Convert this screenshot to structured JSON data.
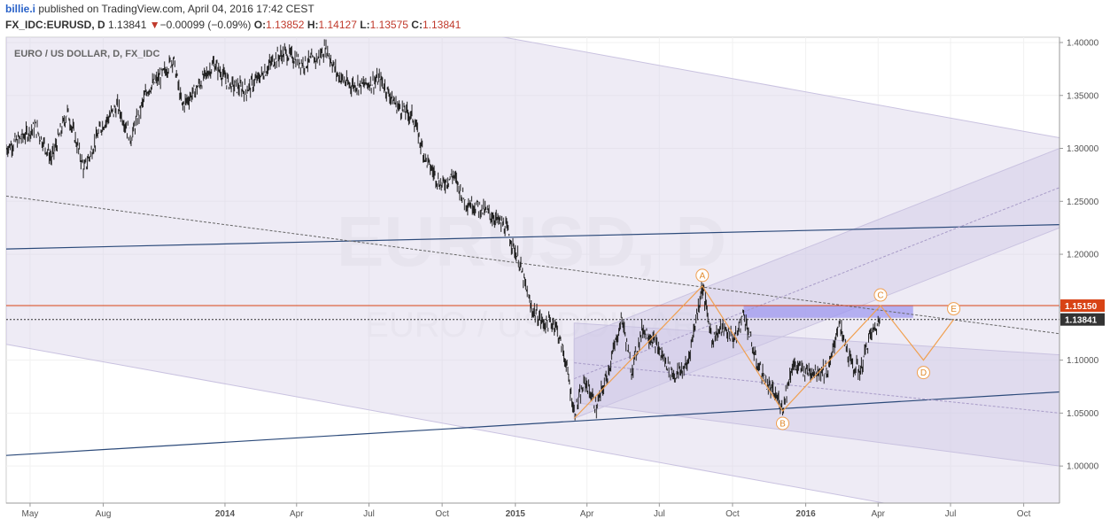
{
  "header": {
    "user": "billie.i",
    "published": "published on TradingView.com, April 04, 2016 17:42 CEST",
    "symbol": "FX_IDC:EURUSD, D",
    "last": "1.13841",
    "change_arrow": "▼",
    "change": "−0.00099 (−0.09%)",
    "o_label": "O:",
    "o_value": "1.13852",
    "h_label": "H:",
    "h_value": "1.14127",
    "l_label": "L:",
    "l_value": "1.13575",
    "c_label": "C:",
    "c_value": "1.13841"
  },
  "chart_data": {
    "type": "line",
    "title": "EURO / US DOLLAR, D, FX_IDC",
    "watermark": "EURUSD, D",
    "watermark2": "EURO / US DOLLAR",
    "y_ticks": [
      "1.40000",
      "1.35000",
      "1.30000",
      "1.25000",
      "1.20000",
      "1.15000",
      "1.10000",
      "1.05000",
      "1.00000"
    ],
    "x_ticks": [
      "May",
      "Aug",
      "2014",
      "Apr",
      "Jul",
      "Oct",
      "2015",
      "Apr",
      "Jul",
      "Oct",
      "2016",
      "Apr",
      "Jul",
      "Oct"
    ],
    "x_tick_dates": [
      "2013-05-01",
      "2013-08-01",
      "2014-01-01",
      "2014-04-01",
      "2014-07-01",
      "2014-10-01",
      "2015-01-01",
      "2015-04-01",
      "2015-07-01",
      "2015-10-01",
      "2016-01-01",
      "2016-04-01",
      "2016-07-01",
      "2016-10-01"
    ],
    "xlim": [
      "2013-04-01",
      "2016-11-15"
    ],
    "ylim": [
      0.965,
      1.405
    ],
    "price_labels": [
      {
        "value": 1.1515,
        "text": "1.15150",
        "color": "#d84315"
      },
      {
        "value": 1.13841,
        "text": "1.13841",
        "color": "#333333"
      }
    ],
    "price_series": [
      [
        "2013-04-01",
        1.3
      ],
      [
        "2013-04-20",
        1.31
      ],
      [
        "2013-05-08",
        1.32
      ],
      [
        "2013-05-28",
        1.29
      ],
      [
        "2013-06-17",
        1.335
      ],
      [
        "2013-07-08",
        1.28
      ],
      [
        "2013-07-29",
        1.32
      ],
      [
        "2013-08-19",
        1.34
      ],
      [
        "2013-09-05",
        1.31
      ],
      [
        "2013-09-25",
        1.355
      ],
      [
        "2013-10-15",
        1.37
      ],
      [
        "2013-10-28",
        1.385
      ],
      [
        "2013-11-08",
        1.34
      ],
      [
        "2013-11-25",
        1.355
      ],
      [
        "2013-12-18",
        1.38
      ],
      [
        "2014-01-08",
        1.36
      ],
      [
        "2014-01-28",
        1.355
      ],
      [
        "2014-02-17",
        1.37
      ],
      [
        "2014-03-05",
        1.385
      ],
      [
        "2014-03-18",
        1.39
      ],
      [
        "2014-04-10",
        1.38
      ],
      [
        "2014-04-28",
        1.385
      ],
      [
        "2014-05-08",
        1.395
      ],
      [
        "2014-05-22",
        1.37
      ],
      [
        "2014-06-05",
        1.36
      ],
      [
        "2014-06-25",
        1.36
      ],
      [
        "2014-07-15",
        1.365
      ],
      [
        "2014-08-05",
        1.34
      ],
      [
        "2014-08-25",
        1.33
      ],
      [
        "2014-09-10",
        1.29
      ],
      [
        "2014-09-30",
        1.265
      ],
      [
        "2014-10-15",
        1.275
      ],
      [
        "2014-10-30",
        1.25
      ],
      [
        "2014-11-15",
        1.245
      ],
      [
        "2014-12-05",
        1.235
      ],
      [
        "2014-12-20",
        1.225
      ],
      [
        "2015-01-05",
        1.195
      ],
      [
        "2015-01-20",
        1.15
      ],
      [
        "2015-02-05",
        1.135
      ],
      [
        "2015-02-20",
        1.135
      ],
      [
        "2015-03-05",
        1.1
      ],
      [
        "2015-03-16",
        1.05
      ],
      [
        "2015-03-30",
        1.08
      ],
      [
        "2015-04-13",
        1.055
      ],
      [
        "2015-04-28",
        1.09
      ],
      [
        "2015-05-15",
        1.14
      ],
      [
        "2015-05-27",
        1.09
      ],
      [
        "2015-06-10",
        1.13
      ],
      [
        "2015-06-22",
        1.12
      ],
      [
        "2015-07-08",
        1.1
      ],
      [
        "2015-07-20",
        1.085
      ],
      [
        "2015-08-05",
        1.095
      ],
      [
        "2015-08-24",
        1.17
      ],
      [
        "2015-09-05",
        1.12
      ],
      [
        "2015-09-18",
        1.13
      ],
      [
        "2015-10-05",
        1.12
      ],
      [
        "2015-10-15",
        1.145
      ],
      [
        "2015-10-30",
        1.1
      ],
      [
        "2015-11-15",
        1.075
      ],
      [
        "2015-11-30",
        1.06
      ],
      [
        "2015-12-03",
        1.055
      ],
      [
        "2015-12-15",
        1.095
      ],
      [
        "2015-12-30",
        1.09
      ],
      [
        "2016-01-15",
        1.09
      ],
      [
        "2016-01-30",
        1.09
      ],
      [
        "2016-02-11",
        1.135
      ],
      [
        "2016-02-28",
        1.095
      ],
      [
        "2016-03-10",
        1.09
      ],
      [
        "2016-03-20",
        1.12
      ],
      [
        "2016-04-04",
        1.13841
      ]
    ],
    "channels": [
      {
        "x0": "2013-04-01",
        "top0": 1.49,
        "bot0": 1.115,
        "x1": "2016-11-15",
        "top1": 1.31,
        "bot1": 0.935,
        "fill": "#d9d2e9"
      },
      {
        "x0": "2015-03-16",
        "top0": 1.12,
        "bot0": 1.045,
        "x1": "2016-11-15",
        "top1": 1.3,
        "bot1": 1.225,
        "fill": "#cfc8e6"
      },
      {
        "x0": "2015-03-16",
        "top0": 1.135,
        "bot0": 1.06,
        "x1": "2016-11-15",
        "top1": 1.105,
        "bot1": 1.0,
        "fill": "#cfc8e6"
      }
    ],
    "trendlines": [
      {
        "x0": "2013-04-01",
        "y0": 1.205,
        "x1": "2016-11-15",
        "y1": 1.228,
        "color": "#2c4a7a",
        "dash": false
      },
      {
        "x0": "2013-04-01",
        "y0": 1.01,
        "x1": "2016-11-15",
        "y1": 1.07,
        "color": "#2c4a7a",
        "dash": false
      },
      {
        "x0": "2013-04-01",
        "y0": 1.255,
        "x1": "2016-11-15",
        "y1": 1.125,
        "color": "#666666",
        "dash": true
      },
      {
        "x0": "2015-03-16",
        "y0": 1.0825,
        "x1": "2016-11-15",
        "y1": 1.263,
        "color": "#a89cc8",
        "dash": true
      },
      {
        "x0": "2015-03-16",
        "y0": 1.0975,
        "x1": "2016-11-15",
        "y1": 1.05,
        "color": "#a89cc8",
        "dash": true
      }
    ],
    "zones": [
      {
        "x0": "2015-10-15",
        "x1": "2016-05-15",
        "y0": 1.152,
        "y1": 1.14,
        "fill": "#9b96f0"
      }
    ],
    "pattern": {
      "color": "#f0a050",
      "points": [
        {
          "label": "A",
          "x": "2015-08-24",
          "y": 1.17
        },
        {
          "label": "B",
          "x": "2015-12-03",
          "y": 1.052
        },
        {
          "label": "C",
          "x": "2016-04-04",
          "y": 1.1515
        },
        {
          "label": "D",
          "x": "2016-05-28",
          "y": 1.1
        },
        {
          "label": "E",
          "x": "2016-07-05",
          "y": 1.1385
        }
      ],
      "start": {
        "x": "2015-03-16",
        "y": 1.045
      }
    }
  }
}
